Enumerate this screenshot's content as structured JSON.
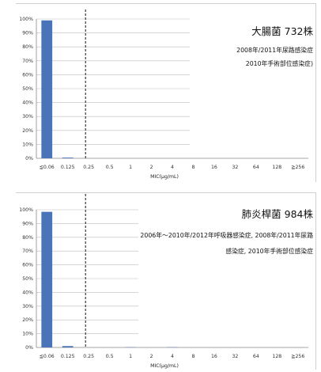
{
  "chart_data": [
    {
      "type": "bar",
      "title": "大腸菌 732株",
      "annotation_lines": [
        "2008年/2011年尿路感染症",
        "2010年手術部位感染症)"
      ],
      "xlabel": "MIC(μg/mL)",
      "ylabel": "",
      "categories": [
        "≦0.06",
        "0.125",
        "0.25",
        "0.5",
        "1",
        "2",
        "4",
        "8",
        "16",
        "32",
        "64",
        "128",
        "≧256"
      ],
      "values": [
        99,
        0.5,
        0,
        0,
        0,
        0,
        0,
        0,
        0,
        0,
        0,
        0,
        0
      ],
      "yticks": [
        "0%",
        "10%",
        "20%",
        "30%",
        "40%",
        "50%",
        "60%",
        "70%",
        "80%",
        "90%",
        "100%"
      ],
      "ylim": [
        0,
        100
      ],
      "grid": true,
      "bar_color": "#4a74b8",
      "reference_line_category": "0.25",
      "reference_line_style": "dashed"
    },
    {
      "type": "bar",
      "title": "肺炎桿菌 984株",
      "annotation_lines": [
        "2006年〜2010年/2012年呼吸器感染症, 2008年/2011年尿路",
        "感染症, 2010年手術部位感染症"
      ],
      "xlabel": "MIC(μg/mL)",
      "ylabel": "",
      "categories": [
        "≦0.06",
        "0.125",
        "0.25",
        "0.5",
        "1",
        "2",
        "4",
        "8",
        "16",
        "32",
        "64",
        "128",
        "≧256"
      ],
      "values": [
        98.5,
        1,
        0,
        0,
        0.2,
        0,
        0.2,
        0,
        0,
        0,
        0,
        0,
        0
      ],
      "yticks": [
        "0%",
        "10%",
        "20%",
        "30%",
        "40%",
        "50%",
        "60%",
        "70%",
        "80%",
        "90%",
        "100%"
      ],
      "ylim": [
        0,
        100
      ],
      "grid": true,
      "bar_color": "#4a74b8",
      "reference_line_category": "0.25",
      "reference_line_style": "dashed"
    }
  ]
}
